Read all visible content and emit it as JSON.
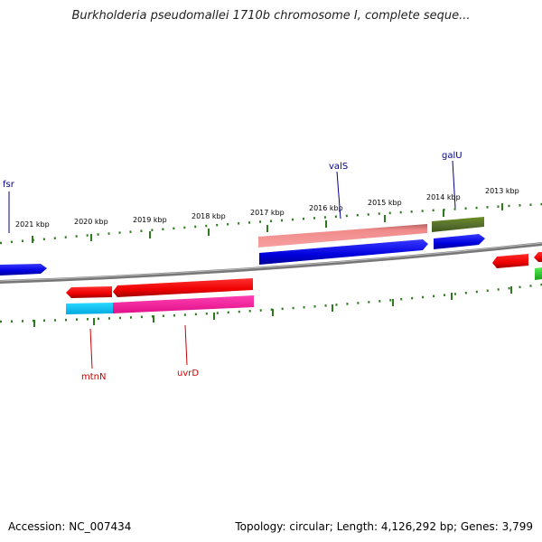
{
  "title": "Burkholderia pseudomallei 1710b chromosome I, complete seque...",
  "footer": {
    "accession": "Accession: NC_007434",
    "summary": "Topology: circular; Length: 4,126,292 bp; Genes: 3,799"
  },
  "kbp_labels": [
    "2021 kbp",
    "2020 kbp",
    "2019 kbp",
    "2018 kbp",
    "2017 kbp",
    "2016 kbp",
    "2015 kbp",
    "2014 kbp",
    "2013 kbp"
  ],
  "gene_labels": {
    "fsr": "fsr",
    "valS": "valS",
    "galU": "galU",
    "mtnN": "mtnN",
    "uvrD": "uvrD"
  },
  "colors": {
    "forward_gene": "#0000ee",
    "reverse_gene": "#ee0000",
    "ticks": "#2d7a1f",
    "backbone": "#888888",
    "label_forward": "#00008b",
    "label_reverse": "#cc0000"
  }
}
